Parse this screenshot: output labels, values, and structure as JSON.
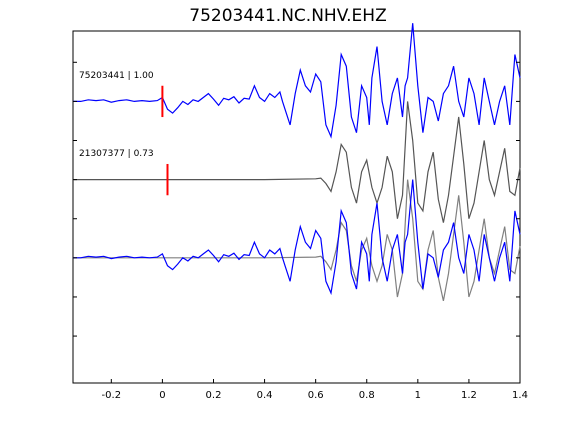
{
  "chart_data": {
    "type": "line",
    "title": "75203441.NC.NHV.EHZ",
    "xlabel": "",
    "ylabel": "",
    "xlim": [
      -0.35,
      1.4
    ],
    "ylim": [
      -2.6,
      1.9
    ],
    "x_ticks": [
      -0.2,
      0,
      0.2,
      0.4,
      0.6,
      0.8,
      1.0,
      1.2,
      1.4
    ],
    "x_tick_labels": [
      "-0.2",
      "0",
      "0.2",
      "0.4",
      "0.6",
      "0.8",
      "1",
      "1.2",
      "1.4"
    ],
    "y_ticks": [
      1.5,
      1.0,
      0.5,
      0.0,
      -0.5,
      -1.0,
      -1.5,
      -2.0
    ],
    "grid": false,
    "legend": "none",
    "colors": {
      "master_trace": "#0000ff",
      "detection_trace": "#555555",
      "pick_marker": "#ff0000",
      "overlay_template": "#808080",
      "overlay_waveform": "#0000ff"
    },
    "traces": [
      {
        "name": "75203441",
        "label": "75203441 | 1.00",
        "offset": 1.0,
        "pick_time": 0.0,
        "pick_halfheight": 0.2,
        "points": [
          [
            -0.35,
            0.0
          ],
          [
            -0.32,
            0.0
          ],
          [
            -0.29,
            0.02
          ],
          [
            -0.26,
            0.01
          ],
          [
            -0.23,
            0.02
          ],
          [
            -0.2,
            -0.01
          ],
          [
            -0.17,
            0.01
          ],
          [
            -0.14,
            0.02
          ],
          [
            -0.11,
            0.0
          ],
          [
            -0.08,
            0.01
          ],
          [
            -0.05,
            0.0
          ],
          [
            -0.02,
            0.01
          ],
          [
            0.0,
            0.05
          ],
          [
            0.02,
            -0.1
          ],
          [
            0.04,
            -0.15
          ],
          [
            0.06,
            -0.08
          ],
          [
            0.08,
            0.0
          ],
          [
            0.1,
            -0.04
          ],
          [
            0.12,
            0.02
          ],
          [
            0.14,
            0.0
          ],
          [
            0.16,
            0.05
          ],
          [
            0.18,
            0.1
          ],
          [
            0.2,
            0.03
          ],
          [
            0.22,
            -0.05
          ],
          [
            0.24,
            0.04
          ],
          [
            0.26,
            0.02
          ],
          [
            0.28,
            0.06
          ],
          [
            0.3,
            -0.02
          ],
          [
            0.32,
            0.04
          ],
          [
            0.34,
            0.03
          ],
          [
            0.36,
            0.2
          ],
          [
            0.38,
            0.05
          ],
          [
            0.4,
            0.0
          ],
          [
            0.42,
            0.1
          ],
          [
            0.44,
            0.05
          ],
          [
            0.46,
            0.12
          ],
          [
            0.47,
            0.0
          ],
          [
            0.48,
            -0.1
          ],
          [
            0.5,
            -0.3
          ],
          [
            0.52,
            0.1
          ],
          [
            0.54,
            0.4
          ],
          [
            0.56,
            0.2
          ],
          [
            0.58,
            0.12
          ],
          [
            0.6,
            0.35
          ],
          [
            0.62,
            0.25
          ],
          [
            0.64,
            -0.3
          ],
          [
            0.66,
            -0.45
          ],
          [
            0.68,
            -0.05
          ],
          [
            0.7,
            0.6
          ],
          [
            0.72,
            0.45
          ],
          [
            0.74,
            -0.2
          ],
          [
            0.76,
            -0.4
          ],
          [
            0.78,
            0.2
          ],
          [
            0.8,
            0.05
          ],
          [
            0.81,
            -0.3
          ],
          [
            0.82,
            0.3
          ],
          [
            0.84,
            0.7
          ],
          [
            0.86,
            0.0
          ],
          [
            0.88,
            -0.3
          ],
          [
            0.9,
            0.1
          ],
          [
            0.92,
            0.3
          ],
          [
            0.94,
            -0.2
          ],
          [
            0.95,
            0.2
          ],
          [
            0.96,
            0.3
          ],
          [
            0.98,
            1.0
          ],
          [
            1.0,
            0.2
          ],
          [
            1.02,
            -0.4
          ],
          [
            1.04,
            0.05
          ],
          [
            1.06,
            0.0
          ],
          [
            1.08,
            -0.25
          ],
          [
            1.1,
            0.1
          ],
          [
            1.12,
            0.2
          ],
          [
            1.14,
            0.45
          ],
          [
            1.16,
            0.0
          ],
          [
            1.18,
            -0.2
          ],
          [
            1.2,
            0.3
          ],
          [
            1.22,
            0.1
          ],
          [
            1.24,
            -0.3
          ],
          [
            1.26,
            0.3
          ],
          [
            1.28,
            0.0
          ],
          [
            1.3,
            -0.3
          ],
          [
            1.32,
            0.0
          ],
          [
            1.34,
            0.2
          ],
          [
            1.36,
            -0.3
          ],
          [
            1.38,
            0.6
          ],
          [
            1.4,
            0.3
          ]
        ]
      },
      {
        "name": "21307377",
        "label": "21307377 | 0.73",
        "offset": 0.0,
        "pick_time": 0.02,
        "pick_halfheight": 0.2,
        "points": [
          [
            -0.35,
            0.0
          ],
          [
            -0.2,
            0.0
          ],
          [
            0.0,
            0.0
          ],
          [
            0.2,
            0.0
          ],
          [
            0.4,
            0.0
          ],
          [
            0.6,
            0.01
          ],
          [
            0.62,
            0.02
          ],
          [
            0.64,
            -0.05
          ],
          [
            0.66,
            -0.15
          ],
          [
            0.68,
            0.1
          ],
          [
            0.7,
            0.45
          ],
          [
            0.72,
            0.35
          ],
          [
            0.74,
            -0.1
          ],
          [
            0.76,
            -0.3
          ],
          [
            0.78,
            0.1
          ],
          [
            0.8,
            0.25
          ],
          [
            0.82,
            -0.1
          ],
          [
            0.84,
            -0.3
          ],
          [
            0.86,
            -0.1
          ],
          [
            0.88,
            0.3
          ],
          [
            0.9,
            0.1
          ],
          [
            0.92,
            -0.5
          ],
          [
            0.94,
            -0.2
          ],
          [
            0.96,
            1.0
          ],
          [
            0.98,
            0.5
          ],
          [
            1.0,
            -0.3
          ],
          [
            1.02,
            -0.4
          ],
          [
            1.04,
            0.1
          ],
          [
            1.06,
            0.35
          ],
          [
            1.08,
            -0.25
          ],
          [
            1.1,
            -0.55
          ],
          [
            1.12,
            -0.2
          ],
          [
            1.14,
            0.3
          ],
          [
            1.16,
            0.8
          ],
          [
            1.18,
            0.2
          ],
          [
            1.2,
            -0.5
          ],
          [
            1.22,
            -0.3
          ],
          [
            1.24,
            0.1
          ],
          [
            1.26,
            0.5
          ],
          [
            1.28,
            0.0
          ],
          [
            1.3,
            -0.2
          ],
          [
            1.32,
            0.1
          ],
          [
            1.34,
            0.4
          ],
          [
            1.36,
            -0.15
          ],
          [
            1.38,
            -0.2
          ],
          [
            1.4,
            0.15
          ]
        ]
      }
    ],
    "overlay": {
      "offset": -1.0,
      "template_trace": "21307377",
      "waveform_trace": "75203441"
    }
  }
}
